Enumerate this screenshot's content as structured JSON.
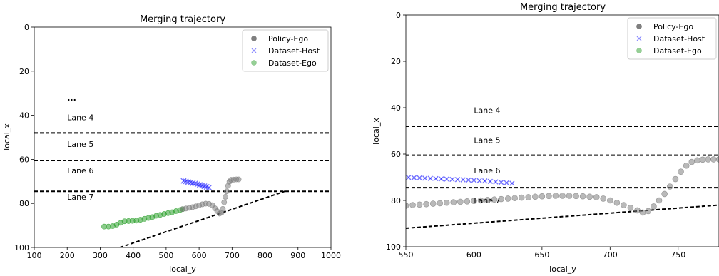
{
  "chart_data": [
    {
      "type": "scatter",
      "title": "Merging trajectory",
      "xlabel": "local_y",
      "ylabel": "local_x",
      "xlim": [
        100,
        1000
      ],
      "ylim": [
        100,
        0
      ],
      "y_inverted": true,
      "xticks": [
        100,
        200,
        300,
        400,
        500,
        600,
        700,
        800,
        900,
        1000
      ],
      "yticks": [
        0,
        20,
        40,
        60,
        80,
        100
      ],
      "grid": false,
      "legend_position": "top-right",
      "legend": [
        "Policy-Ego",
        "Dataset-Host",
        "Dataset-Ego"
      ],
      "lane_labels": [
        {
          "text": "...",
          "x": 200,
          "y": 32
        },
        {
          "text": "Lane 4",
          "x": 200,
          "y": 41
        },
        {
          "text": "Lane 5",
          "x": 200,
          "y": 53
        },
        {
          "text": "Lane 6",
          "x": 200,
          "y": 65
        },
        {
          "text": "Lane 7",
          "x": 200,
          "y": 77
        }
      ],
      "lane_lines": [
        {
          "x": [
            100,
            1000
          ],
          "y": [
            48,
            48
          ]
        },
        {
          "x": [
            100,
            1000
          ],
          "y": [
            60.5,
            60.5
          ]
        },
        {
          "x": [
            100,
            1000
          ],
          "y": [
            74.5,
            74.5
          ]
        },
        {
          "x": [
            360,
            860
          ],
          "y": [
            100,
            74.5
          ]
        }
      ],
      "series": [
        {
          "name": "Dataset-Ego",
          "marker": "circle",
          "color": "#2ca02c",
          "points": [
            [
              312,
              90.5
            ],
            [
              325,
              90.5
            ],
            [
              338,
              90.3
            ],
            [
              350,
              89.6
            ],
            [
              362,
              88.8
            ],
            [
              374,
              88.1
            ],
            [
              386,
              88.0
            ],
            [
              398,
              87.9
            ],
            [
              410,
              87.8
            ],
            [
              422,
              87.4
            ],
            [
              434,
              87.0
            ],
            [
              446,
              86.6
            ],
            [
              458,
              86.2
            ],
            [
              470,
              85.6
            ],
            [
              482,
              85.2
            ],
            [
              494,
              84.8
            ],
            [
              506,
              84.4
            ],
            [
              518,
              84.0
            ],
            [
              530,
              83.5
            ],
            [
              542,
              83.0
            ],
            [
              550,
              82.6
            ]
          ]
        },
        {
          "name": "Policy-Ego",
          "marker": "circle",
          "color": "#808080",
          "points": [
            [
              550,
              82.6
            ],
            [
              560,
              82.3
            ],
            [
              570,
              82.0
            ],
            [
              580,
              81.7
            ],
            [
              590,
              81.3
            ],
            [
              600,
              80.9
            ],
            [
              610,
              80.4
            ],
            [
              620,
              80.1
            ],
            [
              630,
              80.2
            ],
            [
              640,
              80.8
            ],
            [
              648,
              82.2
            ],
            [
              655,
              83.5
            ],
            [
              662,
              84.6
            ],
            [
              668,
              84.2
            ],
            [
              672,
              82.5
            ],
            [
              676,
              79.5
            ],
            [
              680,
              77.0
            ],
            [
              684,
              74.5
            ],
            [
              688,
              72.0
            ],
            [
              692,
              70.2
            ],
            [
              697,
              69.3
            ],
            [
              705,
              69.2
            ],
            [
              713,
              69.1
            ],
            [
              720,
              69.1
            ]
          ]
        },
        {
          "name": "Dataset-Host",
          "marker": "x",
          "color": "#0000ff",
          "points": [
            [
              553,
              69.8
            ],
            [
              560,
              70.0
            ],
            [
              567,
              70.3
            ],
            [
              574,
              70.5
            ],
            [
              581,
              70.8
            ],
            [
              588,
              71.0
            ],
            [
              595,
              71.3
            ],
            [
              602,
              71.6
            ],
            [
              609,
              71.9
            ],
            [
              616,
              72.2
            ],
            [
              623,
              72.5
            ],
            [
              630,
              72.8
            ]
          ]
        }
      ]
    },
    {
      "type": "scatter",
      "title": "Merging trajectory",
      "xlabel": "local_y",
      "ylabel": "local_x",
      "xlim": [
        550,
        780
      ],
      "ylim": [
        100,
        0
      ],
      "y_inverted": true,
      "xticks": [
        550,
        600,
        650,
        700,
        750
      ],
      "yticks": [
        0,
        20,
        40,
        60,
        80,
        100
      ],
      "grid": false,
      "legend_position": "top-right",
      "legend": [
        "Policy-Ego",
        "Dataset-Host",
        "Dataset-Ego"
      ],
      "lane_labels": [
        {
          "text": "Lane 4",
          "x": 600,
          "y": 41
        },
        {
          "text": "Lane 5",
          "x": 600,
          "y": 54
        },
        {
          "text": "Lane 6",
          "x": 600,
          "y": 67
        },
        {
          "text": "Lane 7",
          "x": 600,
          "y": 80
        }
      ],
      "lane_lines": [
        {
          "x": [
            550,
            780
          ],
          "y": [
            48,
            48
          ]
        },
        {
          "x": [
            550,
            780
          ],
          "y": [
            60.5,
            60.5
          ]
        },
        {
          "x": [
            550,
            780
          ],
          "y": [
            74.5,
            74.5
          ]
        },
        {
          "x": [
            550,
            780
          ],
          "y": [
            92,
            82
          ]
        }
      ],
      "series": [
        {
          "name": "Dataset-Host",
          "marker": "x",
          "color": "#0000ff",
          "points": [
            [
              552,
              70.1
            ],
            [
              556,
              70.2
            ],
            [
              560,
              70.3
            ],
            [
              564,
              70.4
            ],
            [
              568,
              70.5
            ],
            [
              572,
              70.6
            ],
            [
              576,
              70.7
            ],
            [
              580,
              70.8
            ],
            [
              584,
              70.9
            ],
            [
              588,
              71.0
            ],
            [
              592,
              71.1
            ],
            [
              596,
              71.2
            ],
            [
              600,
              71.3
            ],
            [
              604,
              71.5
            ],
            [
              608,
              71.6
            ],
            [
              612,
              71.8
            ],
            [
              616,
              72.0
            ],
            [
              620,
              72.2
            ],
            [
              624,
              72.4
            ],
            [
              628,
              72.6
            ]
          ]
        },
        {
          "name": "Policy-Ego",
          "marker": "circle",
          "color": "#808080",
          "points": [
            [
              550,
              82.3
            ],
            [
              555,
              82.0
            ],
            [
              560,
              81.8
            ],
            [
              565,
              81.6
            ],
            [
              570,
              81.4
            ],
            [
              575,
              81.2
            ],
            [
              580,
              81.0
            ],
            [
              585,
              80.8
            ],
            [
              590,
              80.6
            ],
            [
              595,
              80.4
            ],
            [
              600,
              80.2
            ],
            [
              605,
              80.0
            ],
            [
              610,
              79.8
            ],
            [
              615,
              79.6
            ],
            [
              620,
              79.4
            ],
            [
              625,
              79.2
            ],
            [
              630,
              79.0
            ],
            [
              635,
              78.8
            ],
            [
              640,
              78.6
            ],
            [
              645,
              78.4
            ],
            [
              650,
              78.2
            ],
            [
              655,
              78.1
            ],
            [
              660,
              78.0
            ],
            [
              665,
              78.0
            ],
            [
              670,
              78.0
            ],
            [
              675,
              78.1
            ],
            [
              680,
              78.2
            ],
            [
              685,
              78.4
            ],
            [
              690,
              78.6
            ],
            [
              695,
              79.2
            ],
            [
              700,
              80.0
            ],
            [
              705,
              81.0
            ],
            [
              710,
              82.0
            ],
            [
              715,
              83.2
            ],
            [
              720,
              84.3
            ],
            [
              724,
              85.2
            ],
            [
              728,
              84.6
            ],
            [
              732,
              82.6
            ],
            [
              736,
              80.0
            ],
            [
              740,
              77.2
            ],
            [
              744,
              74.0
            ],
            [
              748,
              70.8
            ],
            [
              752,
              67.6
            ],
            [
              756,
              65.0
            ],
            [
              760,
              63.4
            ],
            [
              764,
              62.7
            ],
            [
              768,
              62.4
            ],
            [
              772,
              62.3
            ],
            [
              776,
              62.3
            ],
            [
              780,
              62.3
            ]
          ]
        }
      ]
    }
  ]
}
